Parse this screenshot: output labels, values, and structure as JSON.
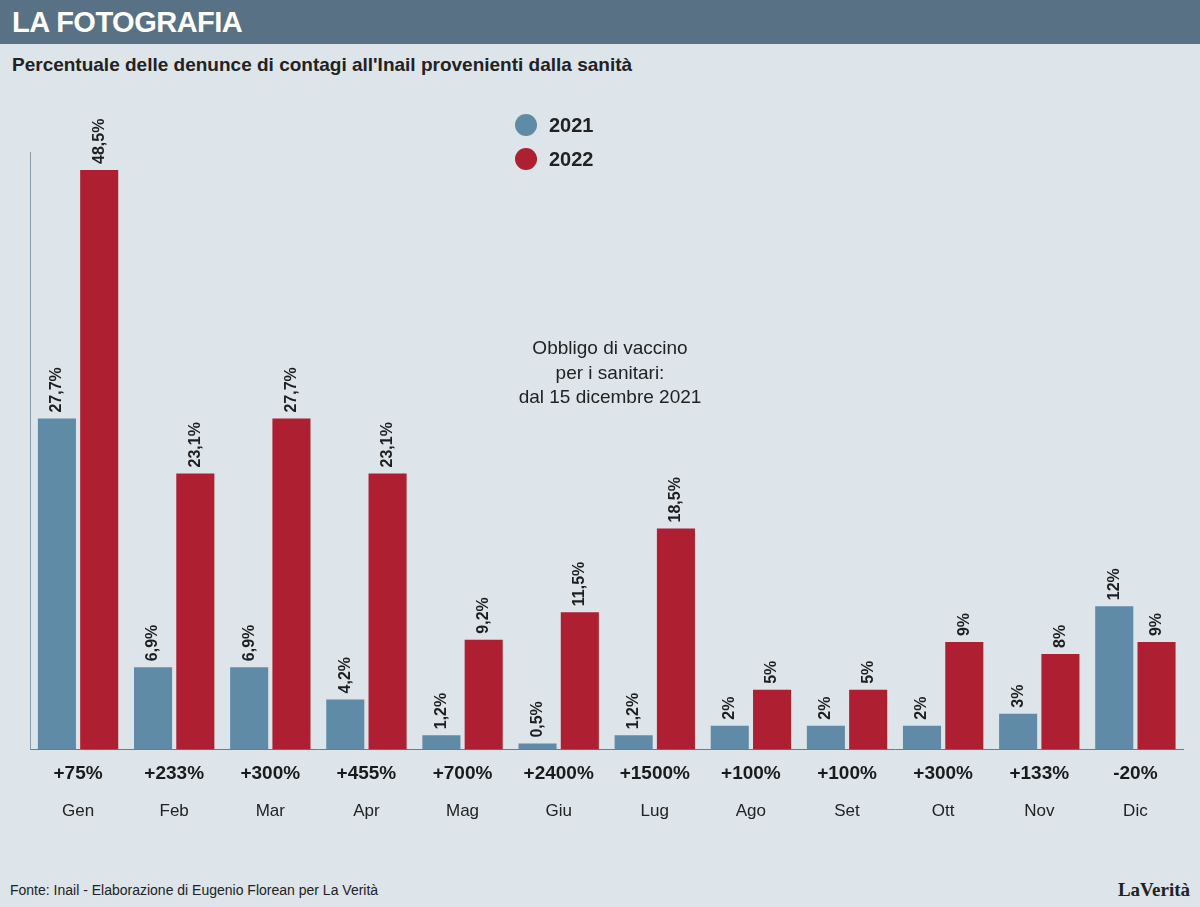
{
  "chart_data": {
    "type": "bar",
    "title": "LA FOTOGRAFIA",
    "subtitle": "Percentuale delle denunce di contagi all'Inail provenienti dalla sanità",
    "categories": [
      "Gen",
      "Feb",
      "Mar",
      "Apr",
      "Mag",
      "Giu",
      "Lug",
      "Ago",
      "Set",
      "Ott",
      "Nov",
      "Dic"
    ],
    "series": [
      {
        "name": "2021",
        "color": "#5f8ba6",
        "values": [
          27.7,
          6.9,
          6.9,
          4.2,
          1.2,
          0.5,
          1.2,
          2,
          2,
          2,
          3,
          12
        ],
        "value_labels": [
          "27,7%",
          "6,9%",
          "6,9%",
          "4,2%",
          "1,2%",
          "0,5%",
          "1,2%",
          "2%",
          "2%",
          "2%",
          "3%",
          "12%"
        ]
      },
      {
        "name": "2022",
        "color": "#ad1f31",
        "values": [
          48.5,
          23.1,
          27.7,
          23.1,
          9.2,
          11.5,
          18.5,
          5,
          5,
          9,
          8,
          9
        ],
        "value_labels": [
          "48,5%",
          "23,1%",
          "27,7%",
          "23,1%",
          "9,2%",
          "11,5%",
          "18,5%",
          "5%",
          "5%",
          "9%",
          "8%",
          "9%"
        ]
      }
    ],
    "change_labels": [
      "+75%",
      "+233%",
      "+300%",
      "+455%",
      "+700%",
      "+2400%",
      "+1500%",
      "+100%",
      "+100%",
      "+300%",
      "+133%",
      "-20%"
    ],
    "annotation": [
      "Obbligo di vaccino",
      "per i sanitari:",
      "dal 15 dicembre 2021"
    ],
    "source": "Fonte: Inail - Elaborazione di Eugenio Florean per La Verità",
    "logo": "LaVerità",
    "ylim": [
      0,
      50
    ],
    "grid": false,
    "legend": "top",
    "data_labels": true,
    "tick_labels": "x"
  }
}
